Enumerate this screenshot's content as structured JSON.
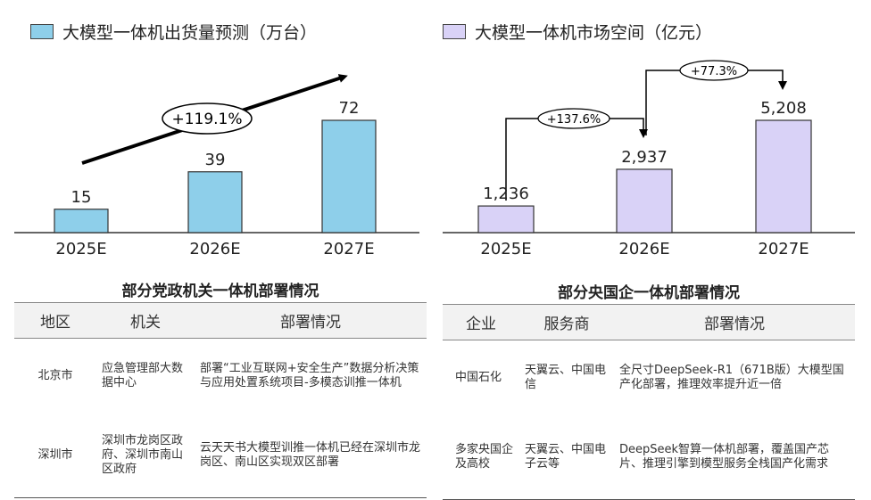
{
  "charts": {
    "left": {
      "legend": "大模型一体机出货量预测（万台）",
      "legend_color": "#8ecfea",
      "growth_label": "+119.1%"
    },
    "right": {
      "legend": "大模型一体机市场空间（亿元）",
      "legend_color": "#d9d2f7",
      "growth_labels": [
        "+137.6%",
        "+77.3%"
      ]
    }
  },
  "chart_data": [
    {
      "type": "bar",
      "categories": [
        "2025E",
        "2026E",
        "2027E"
      ],
      "values": [
        15,
        39,
        72
      ],
      "data_labels": [
        "15",
        "39",
        "72"
      ],
      "ylim": [
        0,
        72
      ],
      "grid": false,
      "legend_position": "top-left"
    },
    {
      "type": "bar",
      "categories": [
        "2025E",
        "2026E",
        "2027E"
      ],
      "values": [
        1236,
        2937,
        5208
      ],
      "data_labels": [
        "1,236",
        "2,937",
        "5,208"
      ],
      "ylim": [
        0,
        5208
      ],
      "grid": false,
      "legend_position": "top-left"
    }
  ],
  "tables": {
    "left": {
      "title": "部分党政机关一体机部署情况",
      "headers": [
        "地区",
        "机关",
        "部署情况"
      ],
      "rows": [
        [
          "北京市",
          "应急管理部大数据中心",
          "部署“工业互联网+安全生产”数据分析决策与应用处置系统项目-多模态训推一体机"
        ],
        [
          "深圳市",
          "深圳市龙岗区政府、深圳市南山区政府",
          "云天天书大模型训推一体机已经在深圳市龙岗区、南山区实现双区部署"
        ]
      ]
    },
    "right": {
      "title": "部分央国企一体机部署情况",
      "headers": [
        "企业",
        "服务商",
        "部署情况"
      ],
      "rows": [
        [
          "中国石化",
          "天翼云、中国电信",
          "全尺寸DeepSeek-R1（671B版）大模型国产化部署，推理效率提升近一倍"
        ],
        [
          "多家央国企及高校",
          "天翼云、中国电子云等",
          "DeepSeek智算一体机部署，覆盖国产芯片、推理引擎到模型服务全栈国产化需求"
        ]
      ]
    }
  }
}
